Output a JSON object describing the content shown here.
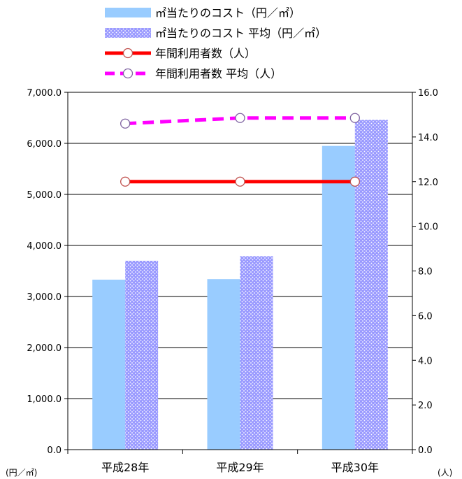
{
  "chart_data": {
    "type": "bar",
    "categories": [
      "平成28年",
      "平成29年",
      "平成30年"
    ],
    "series": [
      {
        "name": "㎡当たりのコスト（円／㎡）",
        "kind": "bar",
        "axis": "left",
        "color": "#99CCFF",
        "pattern": "solid",
        "values": [
          3330,
          3340,
          5950
        ]
      },
      {
        "name": "㎡当たりのコスト  平均（円／㎡）",
        "kind": "bar",
        "axis": "left",
        "color": "#9999FF",
        "pattern": "dotted",
        "values": [
          3700,
          3790,
          6460
        ]
      },
      {
        "name": "年間利用者数（人）",
        "kind": "line",
        "axis": "right",
        "color": "#FF0000",
        "dash": "solid",
        "values": [
          12.0,
          12.0,
          12.0
        ]
      },
      {
        "name": "年間利用者数  平均（人）",
        "kind": "line",
        "axis": "right",
        "color": "#FF00FF",
        "dash": "dashed",
        "values": [
          14.6,
          14.85,
          14.85
        ]
      }
    ],
    "y_left": {
      "min": 0,
      "max": 7000,
      "step": 1000,
      "tick_labels": [
        "0.0",
        "1,000.0",
        "2,000.0",
        "3,000.0",
        "4,000.0",
        "5,000.0",
        "6,000.0",
        "7,000.0"
      ],
      "unit_label": "(円／㎡)"
    },
    "y_right": {
      "min": 0,
      "max": 16,
      "step": 2,
      "tick_labels": [
        "0.0",
        "2.0",
        "4.0",
        "6.0",
        "8.0",
        "10.0",
        "12.0",
        "14.0",
        "16.0"
      ],
      "unit_label": "(人)"
    },
    "grid": true,
    "legend_position": "top",
    "title": ""
  }
}
